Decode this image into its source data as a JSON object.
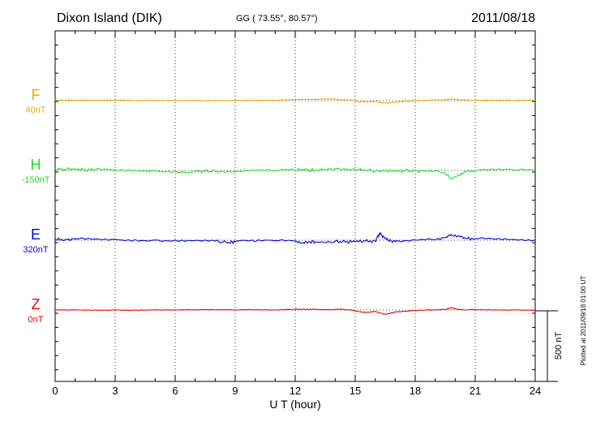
{
  "chart_data": {
    "type": "line",
    "title": "Dixon Island (DIK)",
    "subtitle": "GG ( 73.55°,  80.57°)",
    "date": "2011/08/18",
    "xlabel": "U T (hour)",
    "xlim": [
      0,
      24
    ],
    "x_ticks": [
      0,
      3,
      6,
      9,
      12,
      15,
      18,
      21,
      24
    ],
    "x_tick_labels": [
      "0",
      "3",
      "6",
      "9",
      "12",
      "15",
      "18",
      "21",
      "24"
    ],
    "grid": "vertical dotted at 3-hour intervals",
    "scale_bar_label": "500 nT",
    "scale_bar_nT": 500,
    "footer": "Plotted at 2011/09/18 01:00 UT",
    "series": [
      {
        "name": "F",
        "baseline_label": "40nT",
        "color": "#f0a800",
        "x": [
          0,
          1,
          2,
          3,
          4,
          5,
          6,
          7,
          8,
          9,
          10,
          11,
          12,
          13,
          14,
          14.8,
          15.2,
          15.6,
          16.0,
          16.5,
          17.0,
          17.5,
          18,
          18.5,
          19,
          19.5,
          19.8,
          20.2,
          21,
          22,
          23,
          24
        ],
        "values": [
          2,
          3,
          1,
          2,
          0,
          2,
          1,
          2,
          3,
          2,
          3,
          2,
          6,
          8,
          10,
          4,
          -8,
          -10,
          -6,
          -18,
          -12,
          -4,
          -2,
          2,
          4,
          6,
          12,
          4,
          2,
          2,
          1,
          1
        ]
      },
      {
        "name": "H",
        "baseline_label": "-150nT",
        "color": "#22dd22",
        "x": [
          0,
          0.5,
          1,
          1.5,
          2,
          3,
          4,
          5,
          6,
          7,
          7.5,
          8,
          9,
          10,
          11,
          12,
          12.5,
          12.7,
          13,
          13.5,
          14,
          14.5,
          15,
          15.5,
          16.2,
          16.5,
          17,
          17.5,
          18,
          18.5,
          19,
          19.5,
          19.8,
          20.1,
          20.5,
          21,
          22,
          23,
          24
        ],
        "values": [
          8,
          8,
          12,
          4,
          6,
          2,
          0,
          -2,
          -4,
          -8,
          -6,
          -6,
          -10,
          -2,
          -4,
          0,
          10,
          0,
          4,
          6,
          12,
          8,
          6,
          2,
          -8,
          0,
          -6,
          -2,
          -4,
          -6,
          -4,
          -18,
          -60,
          -38,
          -8,
          -2,
          0,
          2,
          0
        ]
      },
      {
        "name": "E",
        "baseline_label": "320nT",
        "color": "#0000dd",
        "x": [
          0,
          0.5,
          1,
          2,
          3,
          4,
          5,
          6,
          7,
          8,
          8.7,
          9,
          10,
          11,
          12,
          12.4,
          12.7,
          13,
          14,
          14.5,
          15,
          15.5,
          16,
          16.2,
          16.3,
          16.5,
          16.8,
          17,
          17.5,
          18,
          19,
          19.5,
          19.8,
          20.2,
          20.5,
          21,
          22,
          23,
          24
        ],
        "values": [
          6,
          4,
          10,
          8,
          6,
          4,
          2,
          0,
          -2,
          -6,
          -18,
          -8,
          -10,
          -4,
          -6,
          -18,
          -10,
          -12,
          -8,
          -12,
          -10,
          -6,
          -8,
          45,
          40,
          10,
          -6,
          -10,
          -4,
          0,
          4,
          20,
          40,
          30,
          14,
          10,
          6,
          4,
          2
        ]
      },
      {
        "name": "Z",
        "baseline_label": "0nT",
        "color": "#ee0000",
        "x": [
          0,
          1,
          2,
          3,
          4,
          5,
          6,
          7,
          8,
          9,
          10,
          11,
          11.5,
          12,
          12.5,
          13,
          14,
          14.8,
          15.2,
          15.6,
          16.0,
          16.4,
          16.7,
          17,
          17.5,
          18,
          18.5,
          19,
          19.5,
          19.8,
          20.2,
          21,
          22,
          23,
          24
        ],
        "values": [
          0,
          1,
          0,
          1,
          0,
          1,
          0,
          1,
          0,
          0,
          1,
          0,
          2,
          6,
          4,
          5,
          4,
          2,
          -12,
          -16,
          -10,
          -30,
          -26,
          -14,
          -8,
          -4,
          0,
          2,
          4,
          16,
          4,
          2,
          1,
          1,
          1
        ]
      }
    ]
  }
}
